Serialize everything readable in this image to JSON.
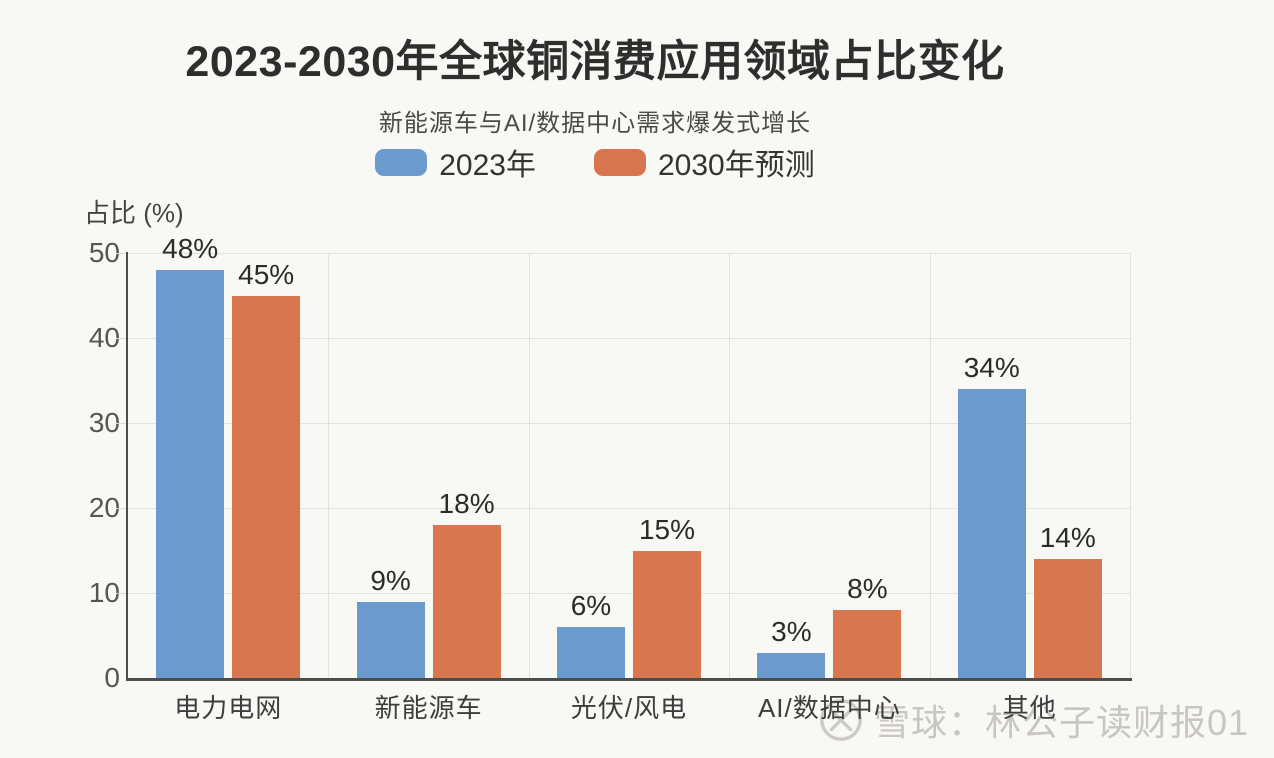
{
  "chart_data": {
    "type": "bar",
    "title": "2023-2030年全球铜消费应用领域占比变化",
    "subtitle": "新能源车与AI/数据中心需求爆发式增长",
    "ylabel": "占比 (%)",
    "ylim": [
      0,
      50
    ],
    "yticks": [
      0,
      10,
      20,
      30,
      40,
      50
    ],
    "grid": true,
    "legend_position": "top",
    "categories": [
      "电力电网",
      "新能源车",
      "光伏/风电",
      "AI/数据中心",
      "其他"
    ],
    "series": [
      {
        "name": "2023年",
        "color": "#6B9BCE",
        "values": [
          48,
          9,
          6,
          3,
          34
        ],
        "labels": [
          "48%",
          "9%",
          "6%",
          "3%",
          "34%"
        ]
      },
      {
        "name": "2030年预测",
        "color": "#D7764F",
        "values": [
          45,
          18,
          15,
          8,
          14
        ],
        "labels": [
          "45%",
          "18%",
          "15%",
          "8%",
          "14%"
        ]
      }
    ]
  },
  "watermark": {
    "text": "雪球：林公子读财报01",
    "icon": "xueqiu-logo",
    "color": "#C7C6C4"
  },
  "colors": {
    "background": "#F8F8F5",
    "axis": "#4D4D4D",
    "gridline": "#E2E2E0",
    "title_text": "#2e2e2e",
    "tick_text": "#555555"
  }
}
